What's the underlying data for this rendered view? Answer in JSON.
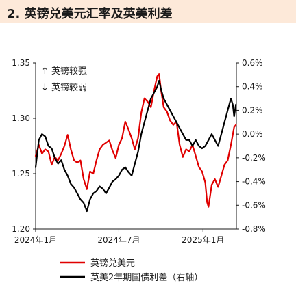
{
  "title": "2. 英镑兑美元汇率及英美利差",
  "chart_data": {
    "type": "line",
    "annotations": [
      "↑ 英镑较强",
      "↓ 英镑较弱"
    ],
    "x_ticks": [
      "2024年1月",
      "2024年7月",
      "2025年1月"
    ],
    "x_range": [
      "2024-01-01",
      "2025-03-15"
    ],
    "y_left": {
      "ylim": [
        1.2,
        1.35
      ],
      "ticks": [
        "1.35",
        "1.30",
        "1.25",
        "1.20"
      ],
      "tick_values": [
        1.35,
        1.3,
        1.25,
        1.2
      ]
    },
    "y_right": {
      "ylim": [
        -0.8,
        0.6
      ],
      "ticks": [
        "0.6%",
        "0.4%",
        "0.2%",
        "0.0%",
        "-0.2%",
        "-0.4%",
        "-0.6%",
        "-0.8%"
      ],
      "tick_values": [
        0.6,
        0.4,
        0.2,
        0.0,
        -0.2,
        -0.4,
        -0.6,
        -0.8
      ]
    },
    "series": [
      {
        "name": "英镑兑美元",
        "axis": "left",
        "color": "#e00000",
        "points": [
          [
            "2024-01-01",
            1.266
          ],
          [
            "2024-01-08",
            1.276
          ],
          [
            "2024-01-15",
            1.268
          ],
          [
            "2024-01-22",
            1.272
          ],
          [
            "2024-01-29",
            1.27
          ],
          [
            "2024-02-05",
            1.258
          ],
          [
            "2024-02-12",
            1.265
          ],
          [
            "2024-02-19",
            1.262
          ],
          [
            "2024-02-26",
            1.268
          ],
          [
            "2024-03-04",
            1.275
          ],
          [
            "2024-03-11",
            1.285
          ],
          [
            "2024-03-18",
            1.272
          ],
          [
            "2024-03-25",
            1.262
          ],
          [
            "2024-04-01",
            1.26
          ],
          [
            "2024-04-08",
            1.262
          ],
          [
            "2024-04-15",
            1.245
          ],
          [
            "2024-04-22",
            1.236
          ],
          [
            "2024-04-29",
            1.252
          ],
          [
            "2024-05-06",
            1.25
          ],
          [
            "2024-05-13",
            1.262
          ],
          [
            "2024-05-20",
            1.272
          ],
          [
            "2024-05-27",
            1.276
          ],
          [
            "2024-06-03",
            1.278
          ],
          [
            "2024-06-10",
            1.28
          ],
          [
            "2024-06-17",
            1.271
          ],
          [
            "2024-06-24",
            1.264
          ],
          [
            "2024-07-01",
            1.276
          ],
          [
            "2024-07-08",
            1.282
          ],
          [
            "2024-07-15",
            1.297
          ],
          [
            "2024-07-22",
            1.29
          ],
          [
            "2024-07-29",
            1.282
          ],
          [
            "2024-08-05",
            1.272
          ],
          [
            "2024-08-12",
            1.282
          ],
          [
            "2024-08-19",
            1.305
          ],
          [
            "2024-08-26",
            1.318
          ],
          [
            "2024-09-02",
            1.315
          ],
          [
            "2024-09-09",
            1.31
          ],
          [
            "2024-09-16",
            1.325
          ],
          [
            "2024-09-23",
            1.338
          ],
          [
            "2024-09-27",
            1.34
          ],
          [
            "2024-10-01",
            1.326
          ],
          [
            "2024-10-07",
            1.31
          ],
          [
            "2024-10-14",
            1.306
          ],
          [
            "2024-10-21",
            1.298
          ],
          [
            "2024-10-28",
            1.294
          ],
          [
            "2024-11-04",
            1.297
          ],
          [
            "2024-11-11",
            1.276
          ],
          [
            "2024-11-18",
            1.265
          ],
          [
            "2024-11-25",
            1.272
          ],
          [
            "2024-12-02",
            1.27
          ],
          [
            "2024-12-09",
            1.276
          ],
          [
            "2024-12-16",
            1.266
          ],
          [
            "2024-12-23",
            1.256
          ],
          [
            "2024-12-30",
            1.252
          ],
          [
            "2025-01-06",
            1.242
          ],
          [
            "2025-01-10",
            1.224
          ],
          [
            "2025-01-13",
            1.22
          ],
          [
            "2025-01-20",
            1.24
          ],
          [
            "2025-01-27",
            1.245
          ],
          [
            "2025-02-03",
            1.238
          ],
          [
            "2025-02-10",
            1.248
          ],
          [
            "2025-02-17",
            1.258
          ],
          [
            "2025-02-24",
            1.262
          ],
          [
            "2025-03-03",
            1.276
          ],
          [
            "2025-03-10",
            1.292
          ],
          [
            "2025-03-14",
            1.294
          ]
        ]
      },
      {
        "name": "英美2年期国债利差（右轴）",
        "axis": "right",
        "color": "#000000",
        "points": [
          [
            "2024-01-01",
            -0.28
          ],
          [
            "2024-01-08",
            -0.05
          ],
          [
            "2024-01-15",
            0.0
          ],
          [
            "2024-01-22",
            -0.02
          ],
          [
            "2024-01-29",
            -0.1
          ],
          [
            "2024-02-05",
            -0.12
          ],
          [
            "2024-02-12",
            -0.2
          ],
          [
            "2024-02-19",
            -0.25
          ],
          [
            "2024-02-26",
            -0.22
          ],
          [
            "2024-03-04",
            -0.3
          ],
          [
            "2024-03-11",
            -0.35
          ],
          [
            "2024-03-18",
            -0.42
          ],
          [
            "2024-03-25",
            -0.45
          ],
          [
            "2024-04-01",
            -0.5
          ],
          [
            "2024-04-08",
            -0.55
          ],
          [
            "2024-04-15",
            -0.58
          ],
          [
            "2024-04-22",
            -0.65
          ],
          [
            "2024-04-29",
            -0.55
          ],
          [
            "2024-05-06",
            -0.5
          ],
          [
            "2024-05-13",
            -0.48
          ],
          [
            "2024-05-20",
            -0.44
          ],
          [
            "2024-05-27",
            -0.46
          ],
          [
            "2024-06-03",
            -0.5
          ],
          [
            "2024-06-10",
            -0.45
          ],
          [
            "2024-06-17",
            -0.4
          ],
          [
            "2024-06-24",
            -0.38
          ],
          [
            "2024-07-01",
            -0.35
          ],
          [
            "2024-07-08",
            -0.3
          ],
          [
            "2024-07-15",
            -0.28
          ],
          [
            "2024-07-22",
            -0.32
          ],
          [
            "2024-07-29",
            -0.35
          ],
          [
            "2024-08-05",
            -0.25
          ],
          [
            "2024-08-12",
            -0.15
          ],
          [
            "2024-08-19",
            0.0
          ],
          [
            "2024-08-26",
            0.1
          ],
          [
            "2024-09-02",
            0.2
          ],
          [
            "2024-09-09",
            0.3
          ],
          [
            "2024-09-16",
            0.35
          ],
          [
            "2024-09-23",
            0.4
          ],
          [
            "2024-09-27",
            0.45
          ],
          [
            "2024-10-01",
            0.38
          ],
          [
            "2024-10-07",
            0.3
          ],
          [
            "2024-10-14",
            0.25
          ],
          [
            "2024-10-21",
            0.2
          ],
          [
            "2024-10-28",
            0.15
          ],
          [
            "2024-11-04",
            0.1
          ],
          [
            "2024-11-11",
            0.05
          ],
          [
            "2024-11-18",
            0.0
          ],
          [
            "2024-11-25",
            -0.05
          ],
          [
            "2024-12-02",
            -0.05
          ],
          [
            "2024-12-09",
            -0.1
          ],
          [
            "2024-12-16",
            -0.05
          ],
          [
            "2024-12-23",
            -0.1
          ],
          [
            "2024-12-30",
            -0.12
          ],
          [
            "2025-01-06",
            -0.1
          ],
          [
            "2025-01-13",
            -0.05
          ],
          [
            "2025-01-20",
            0.0
          ],
          [
            "2025-01-27",
            -0.05
          ],
          [
            "2025-02-03",
            -0.1
          ],
          [
            "2025-02-10",
            0.0
          ],
          [
            "2025-02-17",
            0.1
          ],
          [
            "2025-02-24",
            0.2
          ],
          [
            "2025-03-03",
            0.3
          ],
          [
            "2025-03-07",
            0.25
          ],
          [
            "2025-03-10",
            0.15
          ],
          [
            "2025-03-14",
            0.25
          ]
        ]
      }
    ]
  }
}
